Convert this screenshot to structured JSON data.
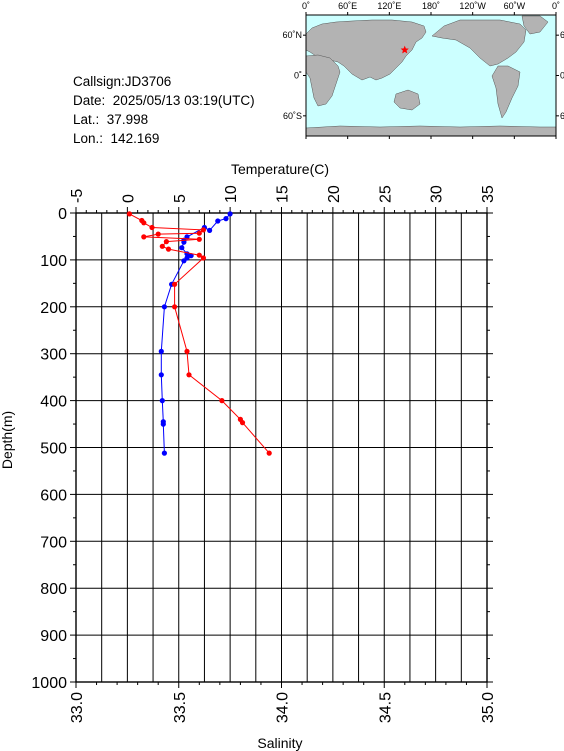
{
  "station": {
    "callsign_label": "Callsign:",
    "callsign": "JD3706",
    "date_label": "Date:",
    "date": "2025/05/13 03:19(UTC)",
    "lat_label": "Lat.:",
    "lat": "37.998",
    "lon_label": "Lon.:",
    "lon": "142.169"
  },
  "map": {
    "lon_ticks": [
      "0˚",
      "60˚E",
      "120˚E",
      "180˚",
      "120˚W",
      "60˚W",
      "0˚"
    ],
    "lat_ticks": [
      {
        "label": "60˚N",
        "lat": 60
      },
      {
        "label": "0˚",
        "lat": 0
      },
      {
        "label": "60˚S",
        "lat": -60
      }
    ],
    "ocean_color": "#ccffff",
    "land_color": "#b3b3b3",
    "marker_color": "#ff0000",
    "marker_lat": 37.998,
    "marker_lon": 142.169
  },
  "chart_data": {
    "type": "line",
    "y_axis": {
      "label": "Depth(m)",
      "range": [
        0,
        1000
      ],
      "ticks": [
        0,
        100,
        200,
        300,
        400,
        500,
        600,
        700,
        800,
        900,
        1000
      ],
      "inverted": true
    },
    "x_axis_top": {
      "label": "Temperature(C)",
      "range": [
        -5,
        35
      ],
      "ticks": [
        -5,
        0,
        5,
        10,
        15,
        20,
        25,
        30,
        35
      ]
    },
    "x_axis_bottom": {
      "label": "Salinity",
      "range": [
        33.0,
        35.0
      ],
      "ticks": [
        "33.0",
        "33.5",
        "34.0",
        "34.5",
        "35.0"
      ]
    },
    "grid": true,
    "series": [
      {
        "axis": "temperature",
        "color": "#0000ff",
        "points": [
          [
            10.0,
            2
          ],
          [
            9.6,
            12
          ],
          [
            8.8,
            17
          ],
          [
            8.0,
            37
          ],
          [
            7.5,
            31
          ],
          [
            5.8,
            51
          ],
          [
            5.5,
            58
          ],
          [
            5.5,
            62
          ],
          [
            5.3,
            74
          ],
          [
            5.8,
            87
          ],
          [
            6.2,
            91
          ],
          [
            5.8,
            96
          ],
          [
            5.5,
            102
          ],
          [
            4.3,
            152
          ],
          [
            3.6,
            200
          ],
          [
            3.3,
            295
          ],
          [
            3.3,
            345
          ],
          [
            3.4,
            400
          ],
          [
            3.5,
            445
          ],
          [
            3.5,
            450
          ],
          [
            3.6,
            512
          ]
        ]
      },
      {
        "axis": "salinity",
        "color": "#ff0000",
        "points": [
          [
            33.26,
            2
          ],
          [
            33.32,
            16
          ],
          [
            33.33,
            21
          ],
          [
            33.37,
            31
          ],
          [
            33.62,
            36
          ],
          [
            33.6,
            43
          ],
          [
            33.4,
            45
          ],
          [
            33.33,
            51
          ],
          [
            33.6,
            56
          ],
          [
            33.44,
            61
          ],
          [
            33.42,
            71
          ],
          [
            33.45,
            77
          ],
          [
            33.6,
            90
          ],
          [
            33.62,
            96
          ],
          [
            33.48,
            152
          ],
          [
            33.48,
            200
          ],
          [
            33.54,
            295
          ],
          [
            33.55,
            345
          ],
          [
            33.71,
            400
          ],
          [
            33.8,
            440
          ],
          [
            33.81,
            447
          ],
          [
            33.94,
            512
          ]
        ]
      }
    ]
  }
}
